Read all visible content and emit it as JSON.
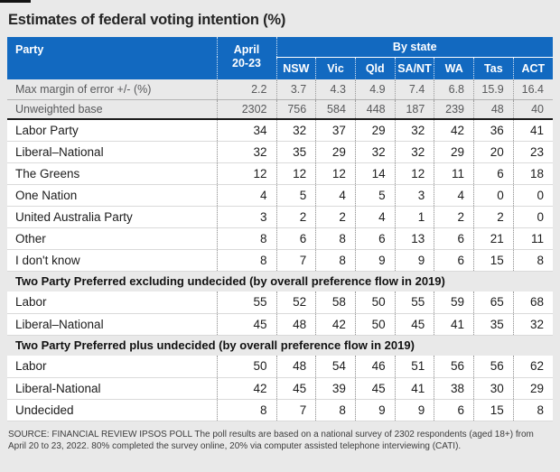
{
  "title": "Estimates of federal voting intention (%)",
  "colors": {
    "header_blue": "#1269c0",
    "page_bg": "#e9e9e9",
    "row_bg": "#ffffff",
    "heavy_rule": "#1a1a1a",
    "stat_text": "#58595b",
    "body_text": "#1c1c1c"
  },
  "chart_data": {
    "type": "table",
    "title": "Estimates of federal voting intention (%)",
    "header": {
      "party_label": "Party",
      "april_label_line1": "April",
      "april_label_line2": "20-23",
      "group_label": "By state",
      "state_columns": [
        "NSW",
        "Vic",
        "Qld",
        "SA/NT",
        "WA",
        "Tas",
        "ACT"
      ]
    },
    "stat_rows": [
      {
        "label": "Max margin of error +/- (%)",
        "values": [
          "2.2",
          "3.7",
          "4.3",
          "4.9",
          "7.4",
          "6.8",
          "15.9",
          "16.4"
        ]
      },
      {
        "label": "Unweighted base",
        "values": [
          "2302",
          "756",
          "584",
          "448",
          "187",
          "239",
          "48",
          "40"
        ]
      }
    ],
    "sections": [
      {
        "heading": "",
        "rows": [
          {
            "label": "Labor Party",
            "values": [
              34,
              32,
              37,
              29,
              32,
              42,
              36,
              41
            ]
          },
          {
            "label": "Liberal–National",
            "values": [
              32,
              35,
              29,
              32,
              32,
              29,
              20,
              23
            ]
          },
          {
            "label": "The Greens",
            "values": [
              12,
              12,
              12,
              14,
              12,
              11,
              6,
              18
            ]
          },
          {
            "label": "One Nation",
            "values": [
              4,
              5,
              4,
              5,
              3,
              4,
              0,
              0
            ]
          },
          {
            "label": "United Australia Party",
            "values": [
              3,
              2,
              2,
              4,
              1,
              2,
              2,
              0
            ]
          },
          {
            "label": "Other",
            "values": [
              8,
              6,
              8,
              6,
              13,
              6,
              21,
              11
            ]
          },
          {
            "label": "I don't know",
            "values": [
              8,
              7,
              8,
              9,
              9,
              6,
              15,
              8
            ]
          }
        ]
      },
      {
        "heading": "Two Party Preferred excluding undecided (by overall preference flow in 2019)",
        "rows": [
          {
            "label": "Labor",
            "values": [
              55,
              52,
              58,
              50,
              55,
              59,
              65,
              68
            ]
          },
          {
            "label": "Liberal–National",
            "values": [
              45,
              48,
              42,
              50,
              45,
              41,
              35,
              32
            ]
          }
        ]
      },
      {
        "heading": "Two Party Preferred plus undecided (by overall preference flow in 2019)",
        "rows": [
          {
            "label": "Labor",
            "values": [
              50,
              48,
              54,
              46,
              51,
              56,
              56,
              62
            ]
          },
          {
            "label": "Liberal-National",
            "values": [
              42,
              45,
              39,
              45,
              41,
              38,
              30,
              29
            ]
          },
          {
            "label": "Undecided",
            "values": [
              8,
              7,
              8,
              9,
              9,
              6,
              15,
              8
            ]
          }
        ]
      }
    ]
  },
  "footer": {
    "source": "SOURCE: FINANCIAL REVIEW  IPSOS POLL   The poll results are based on a national survey of 2302 respondents (aged 18+) from April 20 to 23, 2022. 80% completed the survey online, 20% via computer assisted telephone interviewing (CATI)."
  }
}
